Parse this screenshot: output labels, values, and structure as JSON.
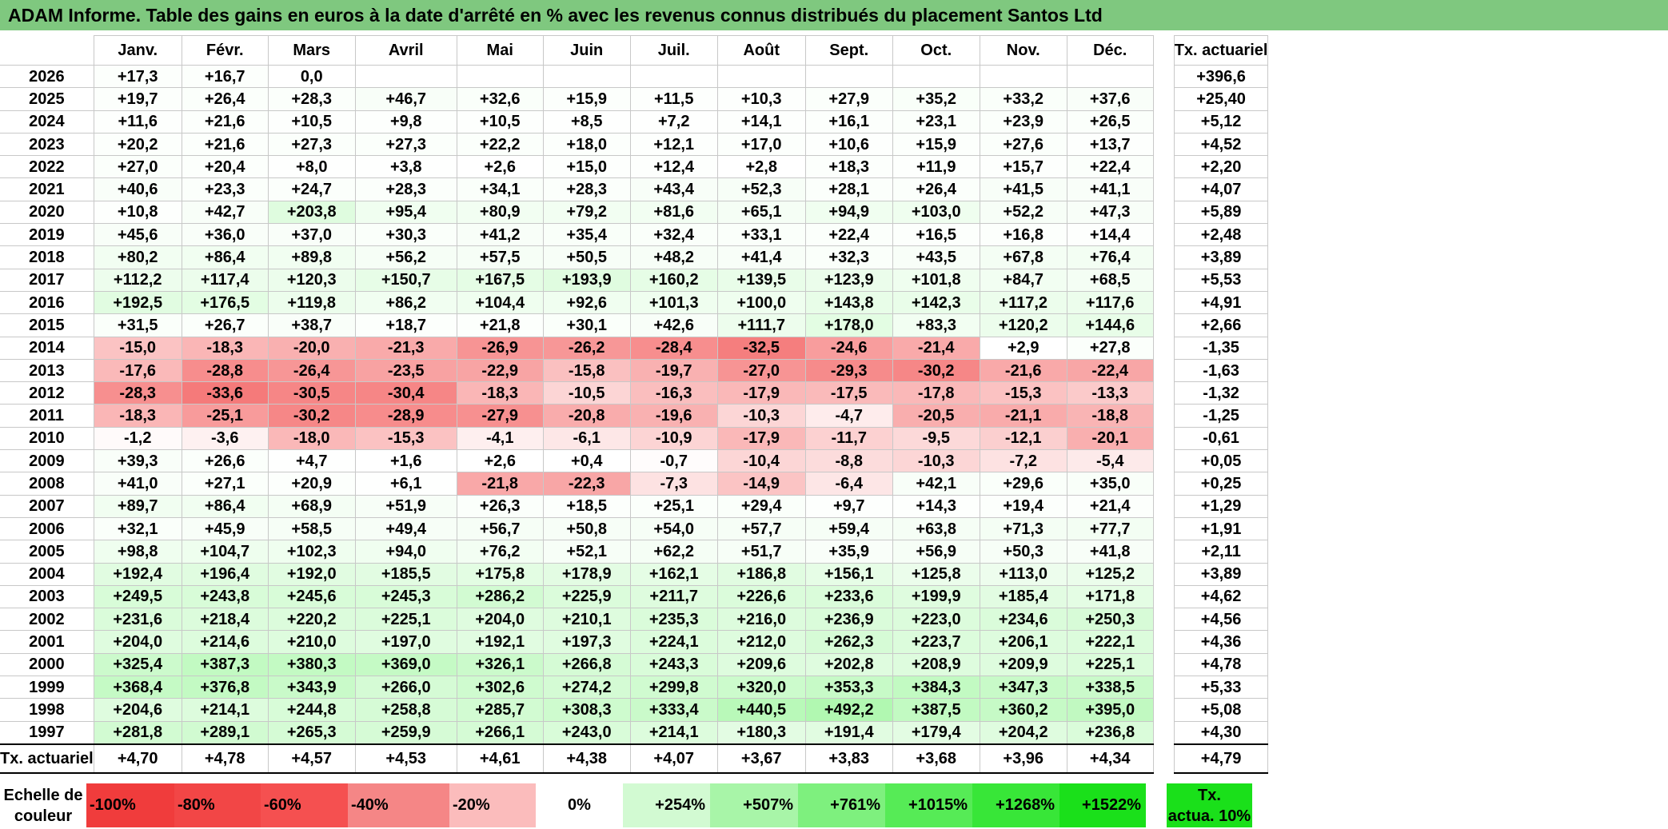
{
  "title": "ADAM Informe. Table des gains en euros à la date d'arrêté en % avec les revenus connus distribués du placement Santos Ltd",
  "months": [
    "Janv.",
    "Févr.",
    "Mars",
    "Avril",
    "Mai",
    "Juin",
    "Juil.",
    "Août",
    "Sept.",
    "Oct.",
    "Nov.",
    "Déc."
  ],
  "annual_header": "Tx. actuariel",
  "rows": [
    {
      "year": "2026",
      "values": [
        "+17,3",
        "+16,7",
        "0,0",
        "",
        "",
        "",
        "",
        "",
        "",
        "",
        "",
        ""
      ],
      "annual": "+396,6"
    },
    {
      "year": "2025",
      "values": [
        "+19,7",
        "+26,4",
        "+28,3",
        "+46,7",
        "+32,6",
        "+15,9",
        "+11,5",
        "+10,3",
        "+27,9",
        "+35,2",
        "+33,2",
        "+37,6"
      ],
      "annual": "+25,40"
    },
    {
      "year": "2024",
      "values": [
        "+11,6",
        "+21,6",
        "+10,5",
        "+9,8",
        "+10,5",
        "+8,5",
        "+7,2",
        "+14,1",
        "+16,1",
        "+23,1",
        "+23,9",
        "+26,5"
      ],
      "annual": "+5,12"
    },
    {
      "year": "2023",
      "values": [
        "+20,2",
        "+21,6",
        "+27,3",
        "+27,3",
        "+22,2",
        "+18,0",
        "+12,1",
        "+17,0",
        "+10,6",
        "+15,9",
        "+27,6",
        "+13,7"
      ],
      "annual": "+4,52"
    },
    {
      "year": "2022",
      "values": [
        "+27,0",
        "+20,4",
        "+8,0",
        "+3,8",
        "+2,6",
        "+15,0",
        "+12,4",
        "+2,8",
        "+18,3",
        "+11,9",
        "+15,7",
        "+22,4"
      ],
      "annual": "+2,20"
    },
    {
      "year": "2021",
      "values": [
        "+40,6",
        "+23,3",
        "+24,7",
        "+28,3",
        "+34,1",
        "+28,3",
        "+43,4",
        "+52,3",
        "+28,1",
        "+26,4",
        "+41,5",
        "+41,1"
      ],
      "annual": "+4,07"
    },
    {
      "year": "2020",
      "values": [
        "+10,8",
        "+42,7",
        "+203,8",
        "+95,4",
        "+80,9",
        "+79,2",
        "+81,6",
        "+65,1",
        "+94,9",
        "+103,0",
        "+52,2",
        "+47,3"
      ],
      "annual": "+5,89"
    },
    {
      "year": "2019",
      "values": [
        "+45,6",
        "+36,0",
        "+37,0",
        "+30,3",
        "+41,2",
        "+35,4",
        "+32,4",
        "+33,1",
        "+22,4",
        "+16,5",
        "+16,8",
        "+14,4"
      ],
      "annual": "+2,48"
    },
    {
      "year": "2018",
      "values": [
        "+80,2",
        "+86,4",
        "+89,8",
        "+56,2",
        "+57,5",
        "+50,5",
        "+48,2",
        "+41,4",
        "+32,3",
        "+43,5",
        "+67,8",
        "+76,4"
      ],
      "annual": "+3,89"
    },
    {
      "year": "2017",
      "values": [
        "+112,2",
        "+117,4",
        "+120,3",
        "+150,7",
        "+167,5",
        "+193,9",
        "+160,2",
        "+139,5",
        "+123,9",
        "+101,8",
        "+84,7",
        "+68,5"
      ],
      "annual": "+5,53"
    },
    {
      "year": "2016",
      "values": [
        "+192,5",
        "+176,5",
        "+119,8",
        "+86,2",
        "+104,4",
        "+92,6",
        "+101,3",
        "+100,0",
        "+143,8",
        "+142,3",
        "+117,2",
        "+117,6"
      ],
      "annual": "+4,91"
    },
    {
      "year": "2015",
      "values": [
        "+31,5",
        "+26,7",
        "+38,7",
        "+18,7",
        "+21,8",
        "+30,1",
        "+42,6",
        "+111,7",
        "+178,0",
        "+83,3",
        "+120,2",
        "+144,6"
      ],
      "annual": "+2,66"
    },
    {
      "year": "2014",
      "values": [
        "-15,0",
        "-18,3",
        "-20,0",
        "-21,3",
        "-26,9",
        "-26,2",
        "-28,4",
        "-32,5",
        "-24,6",
        "-21,4",
        "+2,9",
        "+27,8"
      ],
      "annual": "-1,35"
    },
    {
      "year": "2013",
      "values": [
        "-17,6",
        "-28,8",
        "-26,4",
        "-23,5",
        "-22,9",
        "-15,8",
        "-19,7",
        "-27,0",
        "-29,3",
        "-30,2",
        "-21,6",
        "-22,4"
      ],
      "annual": "-1,63"
    },
    {
      "year": "2012",
      "values": [
        "-28,3",
        "-33,6",
        "-30,5",
        "-30,4",
        "-18,3",
        "-10,5",
        "-16,3",
        "-17,9",
        "-17,5",
        "-17,8",
        "-15,3",
        "-13,3"
      ],
      "annual": "-1,32"
    },
    {
      "year": "2011",
      "values": [
        "-18,3",
        "-25,1",
        "-30,2",
        "-28,9",
        "-27,9",
        "-20,8",
        "-19,6",
        "-10,3",
        "-4,7",
        "-20,5",
        "-21,1",
        "-18,8"
      ],
      "annual": "-1,25"
    },
    {
      "year": "2010",
      "values": [
        "-1,2",
        "-3,6",
        "-18,0",
        "-15,3",
        "-4,1",
        "-6,1",
        "-10,9",
        "-17,9",
        "-11,7",
        "-9,5",
        "-12,1",
        "-20,1"
      ],
      "annual": "-0,61"
    },
    {
      "year": "2009",
      "values": [
        "+39,3",
        "+26,6",
        "+4,7",
        "+1,6",
        "+2,6",
        "+0,4",
        "-0,7",
        "-10,4",
        "-8,8",
        "-10,3",
        "-7,2",
        "-5,4"
      ],
      "annual": "+0,05"
    },
    {
      "year": "2008",
      "values": [
        "+41,0",
        "+27,1",
        "+20,9",
        "+6,1",
        "-21,8",
        "-22,3",
        "-7,3",
        "-14,9",
        "-6,4",
        "+42,1",
        "+29,6",
        "+35,0"
      ],
      "annual": "+0,25"
    },
    {
      "year": "2007",
      "values": [
        "+89,7",
        "+86,4",
        "+68,9",
        "+51,9",
        "+26,3",
        "+18,5",
        "+25,1",
        "+29,4",
        "+9,7",
        "+14,3",
        "+19,4",
        "+21,4"
      ],
      "annual": "+1,29"
    },
    {
      "year": "2006",
      "values": [
        "+32,1",
        "+45,9",
        "+58,5",
        "+49,4",
        "+56,7",
        "+50,8",
        "+54,0",
        "+57,7",
        "+59,4",
        "+63,8",
        "+71,3",
        "+77,7"
      ],
      "annual": "+1,91"
    },
    {
      "year": "2005",
      "values": [
        "+98,8",
        "+104,7",
        "+102,3",
        "+94,0",
        "+76,2",
        "+52,1",
        "+62,2",
        "+51,7",
        "+35,9",
        "+56,9",
        "+50,3",
        "+41,8"
      ],
      "annual": "+2,11"
    },
    {
      "year": "2004",
      "values": [
        "+192,4",
        "+196,4",
        "+192,0",
        "+185,5",
        "+175,8",
        "+178,9",
        "+162,1",
        "+186,8",
        "+156,1",
        "+125,8",
        "+113,0",
        "+125,2"
      ],
      "annual": "+3,89"
    },
    {
      "year": "2003",
      "values": [
        "+249,5",
        "+243,8",
        "+245,6",
        "+245,3",
        "+286,2",
        "+225,9",
        "+211,7",
        "+226,6",
        "+233,6",
        "+199,9",
        "+185,4",
        "+171,8"
      ],
      "annual": "+4,62"
    },
    {
      "year": "2002",
      "values": [
        "+231,6",
        "+218,4",
        "+220,2",
        "+225,1",
        "+204,0",
        "+210,1",
        "+235,3",
        "+216,0",
        "+236,9",
        "+223,0",
        "+234,6",
        "+250,3"
      ],
      "annual": "+4,56"
    },
    {
      "year": "2001",
      "values": [
        "+204,0",
        "+214,6",
        "+210,0",
        "+197,0",
        "+192,1",
        "+197,3",
        "+224,1",
        "+212,0",
        "+262,3",
        "+223,7",
        "+206,1",
        "+222,1"
      ],
      "annual": "+4,36"
    },
    {
      "year": "2000",
      "values": [
        "+325,4",
        "+387,3",
        "+380,3",
        "+369,0",
        "+326,1",
        "+266,8",
        "+243,3",
        "+209,6",
        "+202,8",
        "+208,9",
        "+209,9",
        "+225,1"
      ],
      "annual": "+4,78"
    },
    {
      "year": "1999",
      "values": [
        "+368,4",
        "+376,8",
        "+343,9",
        "+266,0",
        "+302,6",
        "+274,2",
        "+299,8",
        "+320,0",
        "+353,3",
        "+384,3",
        "+347,3",
        "+338,5"
      ],
      "annual": "+5,33"
    },
    {
      "year": "1998",
      "values": [
        "+204,6",
        "+214,1",
        "+244,8",
        "+258,8",
        "+285,7",
        "+308,3",
        "+333,4",
        "+440,5",
        "+492,2",
        "+387,5",
        "+360,2",
        "+395,0"
      ],
      "annual": "+5,08"
    },
    {
      "year": "1997",
      "values": [
        "+281,8",
        "+289,1",
        "+265,3",
        "+259,9",
        "+266,1",
        "+243,0",
        "+214,1",
        "+180,3",
        "+191,4",
        "+179,4",
        "+204,2",
        "+236,8"
      ],
      "annual": "+4,30"
    }
  ],
  "footer": {
    "label": "Tx. actuariel",
    "values": [
      "+4,70",
      "+4,78",
      "+4,57",
      "+4,53",
      "+4,61",
      "+4,38",
      "+4,07",
      "+3,67",
      "+3,83",
      "+3,68",
      "+3,96",
      "+4,34"
    ],
    "annual": "+4,79"
  },
  "scale": {
    "label_line1": "Echelle de",
    "label_line2": "couleur",
    "steps": [
      {
        "label": "-100%",
        "color": "#f03c3c"
      },
      {
        "label": "-80%",
        "color": "#f24646"
      },
      {
        "label": "-60%",
        "color": "#f55050"
      },
      {
        "label": "-40%",
        "color": "#f58686"
      },
      {
        "label": "-20%",
        "color": "#fbbcbc"
      },
      {
        "label": "0%",
        "color": "#ffffff"
      },
      {
        "label": "+254%",
        "color": "#d2fad2"
      },
      {
        "label": "+507%",
        "color": "#a8f5a8"
      },
      {
        "label": "+761%",
        "color": "#7ef07e"
      },
      {
        "label": "+1015%",
        "color": "#56eb56"
      },
      {
        "label": "+1268%",
        "color": "#38e638"
      },
      {
        "label": "+1522%",
        "color": "#1ae01a"
      }
    ],
    "actuarial_line1": "Tx.",
    "actuarial_line2": "actua. 10%",
    "actuarial_color": "#1ae01a"
  }
}
